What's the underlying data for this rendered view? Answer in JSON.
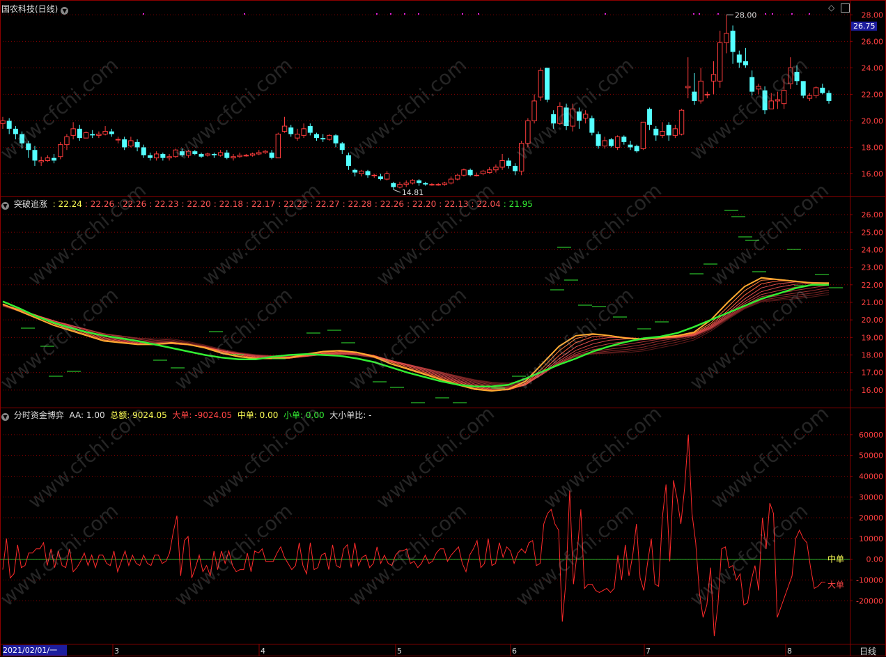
{
  "main_panel": {
    "title": "国农科技(日线)",
    "current_price": "26.75",
    "high_label": "28.00",
    "low_label": "14.81",
    "y_ticks": [
      "28.00",
      "26.00",
      "24.00",
      "22.00",
      "20.00",
      "18.00",
      "16.00"
    ]
  },
  "indicator_panel": {
    "name": "突破追涨",
    "values": [
      "22.24",
      "22.26",
      "22.26",
      "22.23",
      "22.20",
      "22.18",
      "22.17",
      "22.22",
      "22.27",
      "22.28",
      "22.26",
      "22.20",
      "22.13",
      "22.04",
      "21.95"
    ],
    "value_colors": [
      "#ffff55",
      "#ff5555",
      "#ff5555",
      "#ff5555",
      "#ff5555",
      "#ff5555",
      "#ff5555",
      "#ff5555",
      "#ff5555",
      "#ff5555",
      "#ff5555",
      "#ff5555",
      "#ff5555",
      "#ff5555",
      "#33ee33"
    ],
    "y_ticks": [
      "26.00",
      "25.00",
      "24.00",
      "23.00",
      "22.00",
      "21.00",
      "20.00",
      "19.00",
      "18.00",
      "17.00",
      "16.00"
    ]
  },
  "flow_panel": {
    "name": "分时资金博弈",
    "aa_label": "AA: 1.00",
    "total_label": "总额: 9024.05",
    "big_label": "大单: -9024.05",
    "mid_label": "中单: 0.00",
    "small_label": "小单: 0.00",
    "ratio_label": "大小单比: -",
    "line_label_mid": "中单",
    "line_label_big": "大单",
    "y_ticks": [
      "60000",
      "50000",
      "40000",
      "30000",
      "20000",
      "10000",
      "0.00",
      "-10000",
      "-20000"
    ]
  },
  "x_axis": {
    "start_label": "2021/02/01/一",
    "month_labels": [
      "3",
      "4",
      "5",
      "6",
      "7",
      "8"
    ],
    "period_label": "日线"
  },
  "watermark": "www.cfchi.com",
  "colors": {
    "up": "#ff3c3c",
    "down": "#54ffff",
    "grid": "#8b0000",
    "ma_green": "#33ee33"
  },
  "chart_data": [
    {
      "type": "candlestick",
      "title": "国农科技(日线)",
      "ylim": [
        14.5,
        28.7
      ],
      "candles": [
        [
          19.8,
          20.0,
          19.4,
          20.3
        ],
        [
          20.0,
          19.4,
          19.0,
          20.2
        ],
        [
          19.4,
          19.0,
          18.6,
          19.6
        ],
        [
          19.0,
          18.3,
          17.9,
          19.2
        ],
        [
          18.3,
          17.8,
          17.2,
          18.5
        ],
        [
          17.8,
          17.0,
          16.6,
          18.1
        ],
        [
          16.9,
          17.0,
          16.6,
          17.3
        ],
        [
          17.0,
          17.2,
          16.9,
          17.4
        ],
        [
          17.2,
          17.0,
          16.8,
          17.5
        ],
        [
          17.3,
          18.2,
          17.1,
          18.4
        ],
        [
          18.2,
          18.8,
          17.8,
          19.0
        ],
        [
          18.9,
          19.4,
          18.6,
          19.9
        ],
        [
          19.4,
          18.7,
          18.5,
          19.7
        ],
        [
          18.7,
          19.1,
          18.7,
          19.2
        ],
        [
          19.0,
          18.9,
          18.7,
          19.3
        ],
        [
          18.9,
          19.0,
          18.7,
          19.2
        ],
        [
          19.0,
          19.2,
          18.9,
          19.6
        ],
        [
          19.2,
          19.0,
          18.8,
          19.4
        ],
        [
          18.6,
          18.6,
          18.3,
          18.8
        ],
        [
          18.6,
          18.0,
          17.8,
          18.8
        ],
        [
          18.1,
          18.5,
          18.0,
          18.8
        ],
        [
          18.4,
          18.0,
          17.7,
          18.6
        ],
        [
          18.0,
          17.4,
          17.2,
          18.2
        ],
        [
          17.4,
          17.2,
          17.0,
          17.6
        ],
        [
          17.2,
          17.5,
          17.0,
          17.7
        ],
        [
          17.5,
          17.2,
          17.0,
          17.6
        ],
        [
          17.2,
          17.3,
          17.0,
          17.5
        ],
        [
          17.3,
          17.8,
          17.2,
          17.9
        ],
        [
          17.7,
          17.4,
          17.3,
          17.9
        ],
        [
          17.4,
          17.7,
          17.2,
          17.8
        ],
        [
          17.7,
          17.5,
          17.4,
          17.8
        ],
        [
          17.5,
          17.3,
          17.2,
          17.6
        ],
        [
          17.4,
          17.5,
          17.3,
          17.6
        ],
        [
          17.5,
          17.4,
          17.2,
          17.6
        ],
        [
          17.4,
          17.6,
          17.3,
          17.8
        ],
        [
          17.6,
          17.2,
          17.1,
          17.8
        ],
        [
          17.2,
          17.3,
          17.0,
          17.5
        ],
        [
          17.3,
          17.4,
          17.2,
          17.6
        ],
        [
          17.4,
          17.4,
          17.3,
          17.5
        ],
        [
          17.4,
          17.5,
          17.3,
          17.6
        ],
        [
          17.5,
          17.6,
          17.4,
          17.8
        ],
        [
          17.6,
          17.7,
          17.5,
          17.8
        ],
        [
          17.6,
          17.2,
          17.1,
          17.8
        ],
        [
          17.2,
          19.0,
          17.2,
          19.1
        ],
        [
          19.2,
          19.6,
          19.1,
          20.3
        ],
        [
          19.5,
          19.0,
          18.8,
          19.7
        ],
        [
          18.7,
          19.0,
          18.5,
          19.4
        ],
        [
          18.9,
          19.4,
          18.7,
          19.8
        ],
        [
          19.6,
          19.1,
          18.9,
          19.8
        ],
        [
          19.0,
          18.7,
          18.5,
          19.1
        ],
        [
          18.7,
          18.6,
          18.4,
          19.0
        ],
        [
          18.6,
          18.9,
          18.5,
          19.0
        ],
        [
          18.9,
          18.3,
          18.0,
          19.0
        ],
        [
          18.3,
          17.8,
          17.5,
          18.4
        ],
        [
          17.4,
          16.6,
          16.3,
          17.6
        ],
        [
          16.3,
          16.1,
          15.8,
          16.4
        ],
        [
          16.0,
          16.2,
          15.8,
          16.3
        ],
        [
          16.2,
          15.9,
          15.7,
          16.3
        ],
        [
          15.9,
          15.9,
          15.7,
          16.0
        ],
        [
          15.8,
          15.6,
          15.5,
          16.0
        ],
        [
          15.6,
          16.0,
          15.5,
          16.2
        ],
        [
          15.3,
          15.0,
          14.81,
          15.4
        ],
        [
          15.0,
          15.2,
          14.9,
          15.4
        ],
        [
          15.2,
          15.3,
          15.0,
          15.5
        ],
        [
          15.3,
          15.5,
          15.2,
          15.6
        ],
        [
          15.5,
          15.3,
          15.1,
          15.6
        ],
        [
          15.3,
          15.2,
          15.1,
          15.4
        ],
        [
          15.2,
          15.2,
          15.1,
          15.3
        ],
        [
          15.2,
          15.2,
          15.1,
          15.3
        ],
        [
          15.2,
          15.3,
          15.1,
          15.4
        ],
        [
          15.3,
          15.6,
          15.2,
          15.8
        ],
        [
          15.6,
          15.9,
          15.5,
          16.0
        ],
        [
          15.9,
          16.3,
          15.8,
          16.4
        ],
        [
          16.3,
          15.9,
          15.8,
          16.4
        ],
        [
          15.9,
          15.9,
          15.8,
          16.1
        ],
        [
          16.0,
          16.2,
          15.9,
          16.3
        ],
        [
          16.1,
          16.3,
          16.0,
          16.5
        ],
        [
          16.3,
          16.5,
          16.1,
          16.7
        ],
        [
          16.5,
          17.0,
          16.3,
          17.5
        ],
        [
          17.0,
          16.6,
          16.4,
          17.2
        ],
        [
          16.6,
          16.2,
          15.9,
          16.8
        ],
        [
          16.2,
          18.3,
          15.9,
          18.5
        ],
        [
          18.3,
          20.0,
          18.0,
          20.2
        ],
        [
          20.0,
          21.5,
          19.8,
          22.0
        ],
        [
          21.8,
          23.8,
          21.5,
          24.0
        ],
        [
          24.0,
          21.6,
          21.4,
          24.0
        ],
        [
          20.5,
          19.8,
          19.4,
          20.8
        ],
        [
          19.8,
          21.1,
          19.7,
          21.4
        ],
        [
          21.0,
          19.6,
          19.3,
          21.3
        ],
        [
          19.6,
          20.9,
          19.2,
          21.3
        ],
        [
          20.7,
          20.0,
          19.4,
          21.0
        ],
        [
          20.2,
          20.5,
          19.8,
          20.8
        ],
        [
          20.2,
          19.1,
          18.9,
          20.4
        ],
        [
          19.0,
          18.1,
          17.9,
          19.2
        ],
        [
          18.1,
          18.5,
          17.9,
          18.8
        ],
        [
          18.6,
          18.1,
          18.0,
          18.7
        ],
        [
          18.0,
          18.8,
          17.8,
          18.9
        ],
        [
          18.8,
          18.4,
          18.2,
          18.9
        ],
        [
          18.2,
          18.0,
          17.8,
          18.5
        ],
        [
          18.1,
          17.7,
          17.6,
          18.2
        ],
        [
          17.9,
          19.9,
          17.8,
          19.9
        ],
        [
          20.9,
          19.7,
          19.3,
          21.0
        ],
        [
          19.4,
          18.9,
          18.5,
          19.6
        ],
        [
          18.9,
          19.2,
          18.7,
          19.9
        ],
        [
          19.7,
          18.9,
          18.5,
          19.9
        ],
        [
          18.9,
          19.4,
          18.7,
          19.7
        ],
        [
          19.0,
          20.8,
          18.9,
          20.9
        ],
        [
          22.5,
          22.6,
          21.7,
          24.8
        ],
        [
          22.2,
          21.5,
          21.2,
          23.6
        ],
        [
          21.5,
          23.0,
          21.3,
          24.0
        ],
        [
          22.0,
          22.0,
          21.7,
          22.2
        ],
        [
          23.0,
          23.5,
          22.0,
          24.5
        ],
        [
          23.0,
          25.9,
          22.5,
          26.8
        ],
        [
          25.9,
          26.6,
          25.1,
          28.0
        ],
        [
          26.8,
          25.2,
          24.3,
          27.2
        ],
        [
          25.0,
          24.4,
          24.0,
          25.3
        ],
        [
          24.5,
          24.2,
          24.0,
          25.5
        ],
        [
          23.3,
          22.2,
          21.9,
          23.8
        ],
        [
          22.4,
          22.6,
          22.0,
          22.8
        ],
        [
          22.3,
          20.8,
          20.5,
          22.6
        ],
        [
          20.9,
          21.5,
          20.9,
          22.1
        ],
        [
          21.5,
          21.6,
          20.9,
          22.2
        ],
        [
          21.3,
          22.3,
          20.9,
          23.2
        ],
        [
          22.8,
          24.0,
          22.4,
          24.8
        ],
        [
          23.7,
          23.0,
          22.7,
          24.2
        ],
        [
          23.0,
          21.9,
          21.7,
          23.0
        ],
        [
          21.7,
          21.9,
          21.5,
          22.1
        ],
        [
          21.9,
          22.5,
          21.7,
          22.6
        ],
        [
          22.5,
          22.1,
          22.0,
          22.8
        ],
        [
          22.1,
          21.5,
          21.3,
          22.3
        ]
      ]
    },
    {
      "type": "line",
      "title": "突破追涨",
      "ylim": [
        15.2,
        26.4
      ],
      "series_base": [
        20.9,
        20.5,
        20.1,
        19.7,
        19.4,
        19.1,
        18.8,
        18.7,
        18.6,
        18.6,
        18.7,
        18.6,
        18.4,
        18.1,
        17.9,
        17.8,
        17.8,
        17.85,
        18.05,
        18.2,
        18.25,
        18.15,
        17.9,
        17.5,
        17.2,
        16.9,
        16.6,
        16.3,
        16.05,
        15.95,
        16.05,
        16.5,
        17.5,
        18.5,
        19.1,
        19.2,
        19.1,
        18.95,
        18.9,
        19.0,
        19.1,
        19.3,
        20.0,
        21.0,
        21.9,
        22.4,
        22.3,
        22.2,
        22.1,
        22.1
      ],
      "series_green": [
        21.05,
        20.65,
        20.2,
        19.85,
        19.55,
        19.3,
        19.1,
        18.95,
        18.8,
        18.6,
        18.4,
        18.2,
        18.0,
        17.85,
        17.75,
        17.75,
        17.9,
        18.0,
        18.05,
        18.0,
        17.95,
        17.8,
        17.6,
        17.3,
        17.0,
        16.75,
        16.5,
        16.3,
        16.2,
        16.2,
        16.3,
        16.65,
        17.05,
        17.45,
        17.8,
        18.2,
        18.5,
        18.75,
        18.95,
        19.05,
        19.25,
        19.6,
        20.0,
        20.4,
        20.8,
        21.2,
        21.5,
        21.8,
        22.0,
        22.0
      ],
      "series_names": [
        "突破追涨"
      ]
    },
    {
      "type": "line",
      "title": "分时资金博弈",
      "ylim": [
        -40000,
        68000
      ],
      "series": [
        {
          "name": "大单",
          "values": [
            -5000,
            10000,
            -9000,
            -7000,
            7000,
            -4000,
            -3000,
            3000,
            3000,
            5000,
            5000,
            8000,
            -3000,
            5000,
            -4000,
            4000,
            -3000,
            -4000,
            5000,
            -6000,
            -4000,
            -1000,
            3000,
            -3000,
            2000,
            -4000,
            2000,
            2000,
            -2000,
            -3000,
            4000,
            -6000,
            -1000,
            4000,
            -3000,
            2000,
            -2000,
            -3000,
            2000,
            -2000,
            -3000,
            2000,
            2000,
            -2000,
            -1000,
            3000,
            13000,
            21000,
            -8000,
            9000,
            11000,
            -9000,
            -4000,
            2000,
            -6000,
            -3000,
            -8000,
            4000,
            -5000,
            4000,
            -2000,
            4000,
            -3000,
            -6000,
            -5000,
            -5000,
            3000,
            -6000,
            4000,
            3000,
            5000,
            -1000,
            -1000,
            -1000,
            3000,
            6000,
            1000,
            -2000,
            -5000,
            -3000,
            8000,
            -3000,
            -7000,
            8000,
            -5000,
            -4000,
            2000,
            3000,
            -5000,
            7000,
            -3000,
            -4000,
            5000,
            7000,
            -4000,
            8000,
            -3000,
            1000,
            2000,
            -4000,
            -2000,
            6000,
            -2000,
            2000,
            -2000,
            -3000,
            2000,
            4000,
            4000,
            5000,
            -2000,
            -1000,
            -4000,
            -2000,
            2000,
            -2000,
            -1000,
            3000,
            5000,
            5000,
            -1000,
            2000,
            4000,
            6000,
            -2000,
            -6000,
            2000,
            5000,
            9000,
            -4000,
            -2000,
            10000,
            -3000,
            -2000,
            8000,
            1000,
            6000,
            4000,
            -2000,
            3000,
            5000,
            3000,
            8000,
            9000,
            -3000,
            -2000,
            17000,
            22000,
            24000,
            17000,
            14000,
            -30000,
            -10000,
            33000,
            -12000,
            3000,
            24000,
            -14000,
            -12000,
            -12000,
            -15000,
            -16000,
            -15000,
            -14000,
            -16000,
            -14000,
            2000,
            -10000,
            7000,
            -8000,
            2000,
            17000,
            -9000,
            -15000,
            -2000,
            10000,
            -12000,
            -13000,
            20000,
            36000,
            -1000,
            38000,
            29000,
            17000,
            34000,
            60000,
            22000,
            8000,
            -16000,
            -28000,
            -22000,
            -4000,
            -37000,
            -22000,
            5000,
            6000,
            -4000,
            -3000,
            -10000,
            -7000,
            -22000,
            -21000,
            -10000,
            -3000,
            -15000,
            20000,
            5000,
            27000,
            22000,
            -28000,
            -23000,
            -18000,
            -13000,
            -8000,
            10000,
            14000,
            10000,
            8000,
            -4000,
            -14000,
            -13000,
            -11000,
            -11000
          ]
        }
      ]
    }
  ]
}
